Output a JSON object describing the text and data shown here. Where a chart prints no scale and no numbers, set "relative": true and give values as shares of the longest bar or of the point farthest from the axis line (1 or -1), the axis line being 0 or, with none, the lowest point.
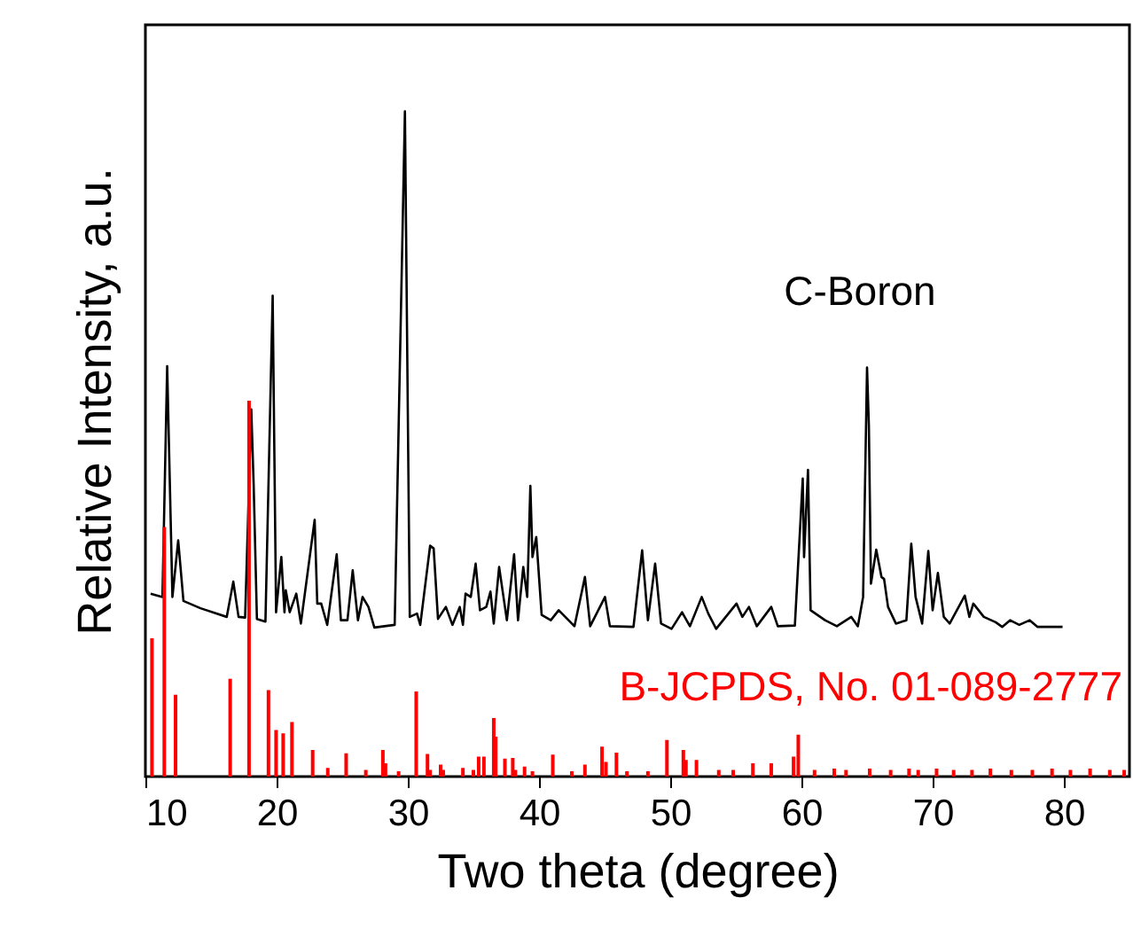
{
  "chart_data": {
    "type": "line",
    "relative": true,
    "xlabel": "Two theta (degree)",
    "ylabel": "Relative Intensity, a.u.",
    "xlim": [
      10,
      85
    ],
    "xticks": [
      10,
      20,
      30,
      40,
      50,
      60,
      70,
      80
    ],
    "grid": false,
    "marker": "none",
    "line_style": "solid",
    "series": [
      {
        "name": "C-Boron",
        "color": "#000000",
        "x": [
          10.4,
          11.3,
          11.66,
          12.06,
          12.5,
          12.9,
          14.2,
          16.2,
          16.7,
          17.1,
          17.6,
          18.07,
          18.25,
          18.5,
          19.15,
          19.7,
          19.96,
          20.36,
          20.6,
          20.7,
          21.0,
          21.5,
          21.85,
          22.9,
          23.1,
          23.4,
          23.86,
          24.58,
          24.9,
          25.4,
          25.8,
          26.2,
          26.55,
          27.0,
          27.45,
          29.0,
          29.78,
          30.15,
          30.7,
          30.95,
          31.7,
          31.97,
          32.3,
          32.9,
          33.4,
          33.96,
          34.2,
          34.4,
          34.8,
          35.17,
          35.5,
          35.98,
          36.3,
          36.55,
          36.96,
          37.55,
          38.1,
          38.4,
          38.8,
          39.1,
          39.34,
          39.5,
          39.79,
          40.2,
          40.9,
          41.5,
          42.7,
          43.5,
          43.9,
          45.03,
          45.4,
          47.2,
          47.86,
          48.3,
          48.85,
          49.3,
          50.1,
          50.9,
          51.5,
          52.4,
          52.9,
          53.5,
          55.05,
          55.5,
          56.0,
          56.6,
          57.7,
          58.2,
          59.5,
          60.1,
          60.2,
          60.5,
          60.7,
          61.8,
          62.7,
          63.8,
          64.3,
          64.7,
          65.0,
          65.14,
          65.3,
          65.7,
          66.1,
          66.3,
          66.6,
          67.2,
          68.0,
          68.37,
          68.7,
          69.2,
          69.67,
          70.0,
          70.4,
          70.85,
          71.3,
          72.45,
          72.8,
          73.1,
          73.9,
          74.8,
          75.3,
          75.9,
          76.6,
          77.4,
          78.0,
          79.9
        ],
        "values": [
          0.275,
          0.27,
          0.617,
          0.27,
          0.355,
          0.264,
          0.253,
          0.24,
          0.293,
          0.24,
          0.239,
          0.552,
          0.44,
          0.237,
          0.233,
          0.723,
          0.247,
          0.33,
          0.247,
          0.28,
          0.247,
          0.275,
          0.23,
          0.386,
          0.26,
          0.26,
          0.228,
          0.334,
          0.235,
          0.235,
          0.31,
          0.235,
          0.27,
          0.255,
          0.224,
          0.228,
          1.0,
          0.24,
          0.245,
          0.228,
          0.347,
          0.343,
          0.237,
          0.255,
          0.228,
          0.255,
          0.228,
          0.275,
          0.27,
          0.32,
          0.25,
          0.255,
          0.278,
          0.23,
          0.315,
          0.235,
          0.334,
          0.235,
          0.315,
          0.27,
          0.437,
          0.33,
          0.36,
          0.243,
          0.235,
          0.25,
          0.226,
          0.3,
          0.226,
          0.27,
          0.226,
          0.225,
          0.34,
          0.235,
          0.32,
          0.23,
          0.222,
          0.247,
          0.226,
          0.27,
          0.245,
          0.222,
          0.26,
          0.24,
          0.255,
          0.226,
          0.255,
          0.226,
          0.227,
          0.448,
          0.33,
          0.461,
          0.25,
          0.235,
          0.226,
          0.24,
          0.226,
          0.27,
          0.615,
          0.528,
          0.29,
          0.341,
          0.3,
          0.297,
          0.255,
          0.23,
          0.235,
          0.35,
          0.27,
          0.23,
          0.339,
          0.25,
          0.306,
          0.24,
          0.23,
          0.272,
          0.24,
          0.26,
          0.24,
          0.232,
          0.225,
          0.235,
          0.228,
          0.235,
          0.225,
          0.225
        ]
      },
      {
        "name": "B-JCPDS, No. 01-089-2777",
        "color": "#ff0000",
        "type": "bar",
        "x": [
          10.5,
          11.44,
          12.3,
          16.46,
          17.9,
          19.38,
          19.96,
          20.5,
          21.17,
          22.75,
          23.9,
          25.3,
          26.8,
          28.1,
          28.3,
          29.3,
          30.64,
          31.5,
          31.7,
          32.5,
          32.7,
          34.2,
          35.0,
          35.4,
          35.8,
          36.55,
          36.7,
          37.4,
          38.0,
          38.2,
          38.9,
          39.5,
          41.05,
          42.5,
          43.5,
          44.8,
          45.1,
          45.9,
          46.7,
          48.3,
          49.75,
          51.0,
          51.2,
          52.0,
          53.7,
          54.8,
          56.3,
          57.7,
          59.4,
          59.76,
          61.0,
          62.5,
          63.4,
          65.2,
          66.8,
          68.2,
          68.9,
          70.3,
          71.6,
          73.0,
          74.4,
          76.0,
          77.6,
          79.1,
          80.5,
          82.0,
          83.5,
          84.6
        ],
        "values": [
          0.208,
          0.375,
          0.123,
          0.147,
          0.565,
          0.13,
          0.07,
          0.065,
          0.082,
          0.04,
          0.013,
          0.035,
          0.01,
          0.04,
          0.02,
          0.008,
          0.128,
          0.034,
          0.01,
          0.018,
          0.01,
          0.013,
          0.01,
          0.03,
          0.03,
          0.088,
          0.06,
          0.027,
          0.028,
          0.01,
          0.015,
          0.008,
          0.033,
          0.008,
          0.018,
          0.045,
          0.022,
          0.036,
          0.008,
          0.008,
          0.055,
          0.04,
          0.025,
          0.025,
          0.01,
          0.01,
          0.02,
          0.02,
          0.03,
          0.063,
          0.01,
          0.012,
          0.01,
          0.012,
          0.01,
          0.012,
          0.01,
          0.012,
          0.01,
          0.01,
          0.012,
          0.01,
          0.01,
          0.012,
          0.01,
          0.012,
          0.01,
          0.01
        ]
      }
    ]
  }
}
